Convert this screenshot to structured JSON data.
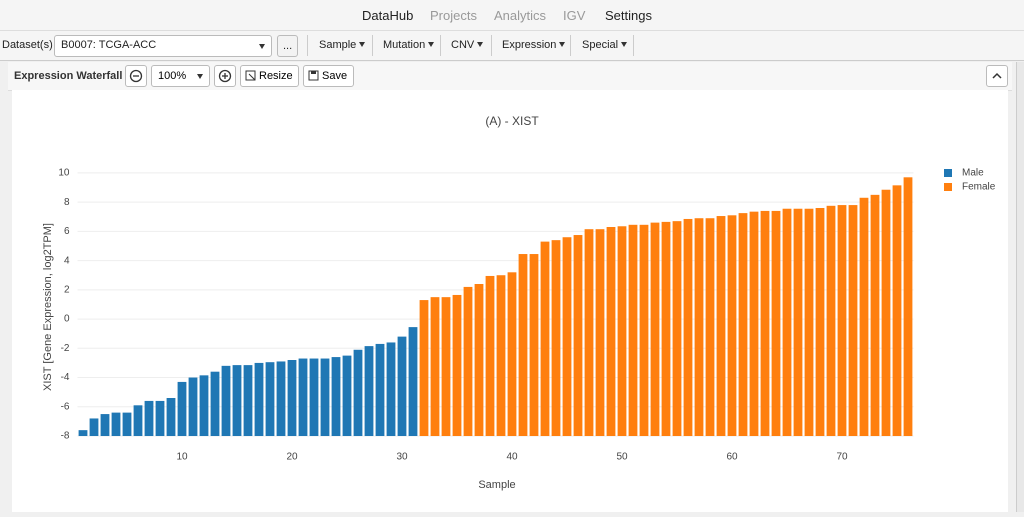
{
  "nav": [
    "DataHub",
    "Projects",
    "Analytics",
    "IGV",
    "Settings"
  ],
  "toolbar": {
    "dataset_label": "Dataset(s)",
    "dataset_value": "B0007: TCGA-ACC",
    "more": "...",
    "menus": [
      "Sample",
      "Mutation",
      "CNV",
      "Expression",
      "Special"
    ]
  },
  "panel": {
    "title": "Expression Waterfall",
    "zoom": "100%",
    "resize": "Resize",
    "save": "Save"
  },
  "chart_data": {
    "type": "bar",
    "title": "(A) - XIST",
    "x_label": "Sample",
    "y_label": "XIST [Gene Expression, log2TPM]",
    "xlim": [
      0.5,
      76.5
    ],
    "xticks": [
      10,
      20,
      30,
      40,
      50,
      60,
      70
    ],
    "ylim": [
      -8,
      10.2
    ],
    "yticks": [
      -8,
      -6,
      -4,
      -2,
      0,
      2,
      4,
      6,
      8,
      10
    ],
    "grid": true,
    "legend": "top-right",
    "series": [
      {
        "name": "Male",
        "color": "#1f77b4",
        "x": [
          1,
          2,
          3,
          4,
          5,
          6,
          7,
          8,
          9,
          10,
          11,
          12,
          13,
          14,
          15,
          16,
          17,
          18,
          19,
          20,
          21,
          22,
          23,
          24,
          25,
          26,
          27,
          28,
          29,
          30,
          31
        ],
        "values": [
          -7.6,
          -6.8,
          -6.5,
          -6.4,
          -6.4,
          -5.9,
          -5.6,
          -5.6,
          -5.4,
          -4.3,
          -4.0,
          -3.85,
          -3.6,
          -3.2,
          -3.15,
          -3.15,
          -3.0,
          -2.95,
          -2.9,
          -2.8,
          -2.7,
          -2.7,
          -2.7,
          -2.6,
          -2.5,
          -2.1,
          -1.85,
          -1.7,
          -1.6,
          -1.2,
          -0.55
        ]
      },
      {
        "name": "Female",
        "color": "#ff7f0e",
        "x": [
          32,
          33,
          34,
          35,
          36,
          37,
          38,
          39,
          40,
          41,
          42,
          43,
          44,
          45,
          46,
          47,
          48,
          49,
          50,
          51,
          52,
          53,
          54,
          55,
          56,
          57,
          58,
          59,
          60,
          61,
          62,
          63,
          64,
          65,
          66,
          67,
          68,
          69,
          70,
          71,
          72,
          73,
          74,
          75,
          76
        ],
        "values": [
          1.3,
          1.5,
          1.5,
          1.65,
          2.2,
          2.4,
          2.95,
          3.0,
          3.2,
          4.45,
          4.45,
          5.3,
          5.4,
          5.6,
          5.75,
          6.15,
          6.15,
          6.3,
          6.35,
          6.45,
          6.45,
          6.6,
          6.65,
          6.7,
          6.85,
          6.9,
          6.9,
          7.05,
          7.1,
          7.25,
          7.35,
          7.4,
          7.4,
          7.55,
          7.55,
          7.55,
          7.6,
          7.75,
          7.8,
          7.8,
          8.3,
          8.5,
          8.85,
          9.15,
          9.7
        ]
      }
    ]
  }
}
